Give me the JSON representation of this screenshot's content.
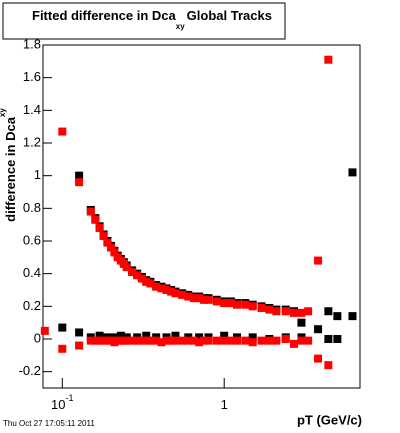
{
  "chart_data": {
    "type": "scatter",
    "title": "Fitted difference in Dca",
    "title_subscript": "xy",
    "title_suffix": "Global Tracks",
    "ylabel": "difference in Dca",
    "ylabel_subscript": "xy",
    "xlabel": "pT (GeV/c)",
    "footer": "Thu Oct 27 17:05:11 2011",
    "xscale": "log",
    "xlim": [
      0.076,
      6.9
    ],
    "ylim": [
      -0.3,
      1.8
    ],
    "xticks": [
      {
        "value": 0.1,
        "label": "10",
        "exponent": "-1"
      },
      1
    ],
    "yticks": [
      -0.2,
      0,
      0.2,
      0.4,
      0.6,
      0.8,
      1,
      1.2,
      1.4,
      1.6,
      1.8
    ],
    "series": [
      {
        "color": "#000000",
        "x": [
          0.127,
          0.15,
          0.16,
          0.17,
          0.18,
          0.19,
          0.2,
          0.21,
          0.22,
          0.23,
          0.24,
          0.25,
          0.27,
          0.29,
          0.31,
          0.33,
          0.35,
          0.38,
          0.41,
          0.44,
          0.47,
          0.5,
          0.55,
          0.6,
          0.65,
          0.7,
          0.75,
          0.8,
          0.9,
          1.0,
          1.1,
          1.2,
          1.35,
          1.5,
          1.7,
          1.9,
          2.1,
          2.4,
          2.7,
          3.0,
          3.8,
          4.4,
          5.0,
          6.2
        ],
        "values": [
          1.0,
          0.79,
          0.74,
          0.69,
          0.64,
          0.6,
          0.57,
          0.54,
          0.51,
          0.49,
          0.47,
          0.45,
          0.42,
          0.4,
          0.38,
          0.36,
          0.35,
          0.33,
          0.32,
          0.31,
          0.3,
          0.29,
          0.28,
          0.27,
          0.26,
          0.26,
          0.25,
          0.25,
          0.24,
          0.23,
          0.23,
          0.22,
          0.22,
          0.21,
          0.2,
          0.19,
          0.18,
          0.18,
          0.17,
          0.1,
          0.06,
          0.17,
          0.14,
          1.02
        ]
      },
      {
        "color": "#ff0000",
        "x": [
          0.1,
          0.127,
          0.15,
          0.16,
          0.17,
          0.18,
          0.19,
          0.2,
          0.21,
          0.22,
          0.23,
          0.24,
          0.25,
          0.27,
          0.29,
          0.31,
          0.33,
          0.35,
          0.38,
          0.41,
          0.44,
          0.47,
          0.5,
          0.55,
          0.6,
          0.65,
          0.7,
          0.75,
          0.8,
          0.9,
          1.0,
          1.1,
          1.2,
          1.35,
          1.5,
          1.7,
          1.9,
          2.1,
          2.4,
          2.7,
          3.0,
          3.3,
          3.8,
          4.4
        ],
        "values": [
          1.27,
          0.96,
          0.78,
          0.73,
          0.68,
          0.63,
          0.59,
          0.56,
          0.53,
          0.5,
          0.48,
          0.46,
          0.44,
          0.41,
          0.39,
          0.37,
          0.35,
          0.34,
          0.32,
          0.31,
          0.3,
          0.29,
          0.28,
          0.27,
          0.26,
          0.25,
          0.25,
          0.24,
          0.24,
          0.23,
          0.22,
          0.22,
          0.21,
          0.21,
          0.2,
          0.19,
          0.18,
          0.17,
          0.17,
          0.16,
          0.16,
          0.17,
          0.48,
          1.71
        ]
      },
      {
        "color": "#000000",
        "x": [
          0.1,
          0.127,
          0.15,
          0.17,
          0.19,
          0.21,
          0.23,
          0.25,
          0.29,
          0.33,
          0.38,
          0.44,
          0.5,
          0.6,
          0.7,
          0.8,
          1.0,
          1.2,
          1.5,
          1.9,
          2.4,
          3.0,
          4.4,
          5.0,
          6.2
        ],
        "values": [
          0.07,
          0.04,
          0.01,
          0.02,
          0.01,
          0.01,
          0.02,
          0.01,
          0.01,
          0.02,
          0.01,
          0.01,
          0.02,
          0.01,
          0.01,
          0.01,
          0.02,
          0.01,
          0.01,
          0.0,
          0.01,
          0.01,
          0.0,
          0.0,
          0.14
        ]
      },
      {
        "color": "#ff0000",
        "x": [
          0.078,
          0.1,
          0.127,
          0.15,
          0.16,
          0.17,
          0.18,
          0.19,
          0.2,
          0.21,
          0.22,
          0.23,
          0.24,
          0.25,
          0.27,
          0.29,
          0.31,
          0.33,
          0.35,
          0.38,
          0.41,
          0.44,
          0.47,
          0.5,
          0.55,
          0.6,
          0.65,
          0.7,
          0.75,
          0.8,
          0.9,
          1.0,
          1.1,
          1.2,
          1.35,
          1.5,
          1.7,
          1.9,
          2.1,
          2.4,
          2.7,
          3.0,
          3.3,
          3.8,
          4.4
        ],
        "values": [
          0.05,
          -0.06,
          -0.04,
          -0.01,
          -0.01,
          -0.01,
          -0.01,
          -0.01,
          -0.01,
          -0.02,
          -0.01,
          -0.01,
          -0.01,
          -0.01,
          -0.01,
          -0.01,
          -0.01,
          -0.01,
          -0.01,
          -0.01,
          -0.02,
          -0.01,
          -0.01,
          -0.01,
          -0.01,
          -0.01,
          -0.01,
          -0.02,
          -0.01,
          -0.01,
          -0.01,
          -0.01,
          -0.01,
          -0.01,
          -0.01,
          -0.02,
          -0.01,
          -0.01,
          -0.01,
          0.0,
          -0.03,
          -0.01,
          -0.01,
          -0.12,
          -0.16
        ]
      }
    ]
  }
}
